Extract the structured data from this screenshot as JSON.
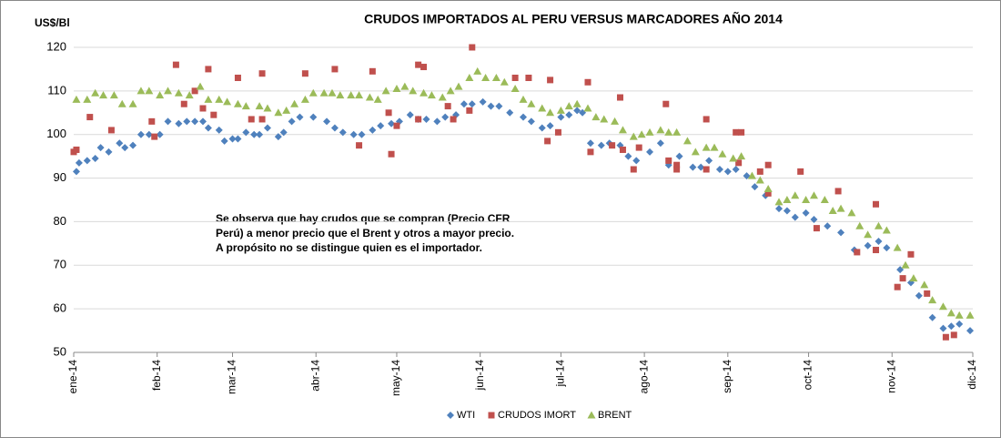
{
  "chart_data": {
    "type": "scatter",
    "title": "CRUDOS IMPORTADOS AL PERU VERSUS MARCADORES AÑO 2014",
    "y_label": "US$/Bl",
    "annotation": [
      "Se observa que hay crudos que se compran (Precio CFR",
      "Perú) a menor precio que el Brent y otros a mayor precio.",
      "A propósito  no se distingue quien es el importador."
    ],
    "xlim": [
      0,
      334
    ],
    "xticks": [
      {
        "value": 0,
        "label": "ene-14"
      },
      {
        "value": 31,
        "label": "feb-14"
      },
      {
        "value": 59,
        "label": "mar-14"
      },
      {
        "value": 90,
        "label": "abr-14"
      },
      {
        "value": 120,
        "label": "may-14"
      },
      {
        "value": 151,
        "label": "jun-14"
      },
      {
        "value": 181,
        "label": "jul-14"
      },
      {
        "value": 212,
        "label": "ago-14"
      },
      {
        "value": 243,
        "label": "sep-14"
      },
      {
        "value": 273,
        "label": "oct-14"
      },
      {
        "value": 304,
        "label": "nov-14"
      },
      {
        "value": 334,
        "label": "dic-14"
      }
    ],
    "ylim": [
      50,
      120
    ],
    "yticks": [
      50,
      60,
      70,
      80,
      90,
      100,
      110,
      120
    ],
    "grid": true,
    "legend": "bottom",
    "series": [
      {
        "name": "WTI",
        "color": "#4f81bd",
        "marker": "diamond",
        "x": [
          1,
          2,
          5,
          8,
          10,
          13,
          17,
          19,
          22,
          25,
          28,
          32,
          35,
          39,
          42,
          45,
          48,
          50,
          54,
          56,
          59,
          61,
          64,
          67,
          69,
          72,
          76,
          78,
          81,
          84,
          89,
          94,
          97,
          100,
          104,
          107,
          111,
          114,
          118,
          121,
          125,
          128,
          131,
          135,
          138,
          142,
          145,
          148,
          152,
          155,
          158,
          162,
          167,
          170,
          174,
          177,
          181,
          184,
          187,
          189,
          192,
          196,
          199,
          203,
          206,
          209,
          214,
          218,
          221,
          225,
          230,
          233,
          236,
          240,
          243,
          246,
          250,
          253,
          257,
          262,
          265,
          268,
          272,
          275,
          280,
          285,
          290,
          295,
          299,
          302,
          307,
          311,
          314,
          319,
          323,
          326,
          329,
          333
        ],
        "values": [
          91.5,
          93.5,
          94,
          94.5,
          97,
          96,
          98,
          97,
          97.5,
          100,
          100,
          100,
          103,
          102.5,
          103,
          103,
          103,
          101.5,
          101,
          98.5,
          99,
          99,
          100.5,
          100,
          100,
          101.5,
          99.5,
          100.5,
          103,
          104,
          104,
          103,
          101.5,
          100.5,
          100,
          100,
          101,
          102,
          102.5,
          103,
          104.5,
          103.5,
          103.5,
          103,
          104,
          104.5,
          107,
          107,
          107.5,
          106.5,
          106.5,
          105,
          104,
          103,
          101.5,
          102,
          104,
          104.5,
          105.5,
          105,
          98,
          97.5,
          98,
          97.5,
          95,
          94,
          96,
          98,
          93,
          95,
          92.5,
          92.5,
          94,
          92,
          91.5,
          92,
          90.5,
          88,
          86,
          83,
          82.5,
          81,
          82,
          80.5,
          79,
          77.5,
          73.5,
          74.5,
          75.5,
          74,
          69,
          66,
          63,
          58,
          55.5,
          56,
          56.5,
          55
        ]
      },
      {
        "name": "CRUDOS IMORT",
        "color": "#c0504d",
        "marker": "square",
        "x": [
          0,
          1,
          6,
          14,
          29,
          30,
          38,
          41,
          45,
          48,
          50,
          52,
          61,
          66,
          70,
          70,
          86,
          97,
          106,
          111,
          117,
          118,
          120,
          128,
          128,
          130,
          139,
          141,
          147,
          148,
          164,
          169,
          176,
          177,
          180,
          191,
          192,
          200,
          203,
          204,
          208,
          210,
          220,
          221,
          224,
          224,
          235,
          235,
          246,
          247,
          248,
          255,
          258,
          258,
          270,
          276,
          284,
          291,
          298,
          298,
          306,
          308,
          311,
          317,
          324,
          327
        ],
        "values": [
          96,
          96.5,
          104,
          101,
          103,
          99.5,
          116,
          107,
          110,
          106,
          115,
          104.5,
          113,
          103.5,
          114,
          103.5,
          114,
          115,
          97.5,
          114.5,
          105,
          95.5,
          102,
          103.5,
          116,
          115.5,
          106.5,
          103.5,
          105.5,
          120,
          113,
          113,
          98.5,
          112.5,
          100.5,
          112,
          96,
          97.5,
          108.5,
          96.5,
          92,
          97,
          107,
          94,
          93,
          92,
          92,
          103.5,
          100.5,
          93.5,
          100.5,
          91.5,
          93,
          86.5,
          91.5,
          78.5,
          87,
          73,
          73.5,
          84,
          65,
          67,
          72.5,
          63.5,
          53.5,
          54
        ]
      },
      {
        "name": "BRENT",
        "color": "#9bbb59",
        "marker": "triangle",
        "x": [
          1,
          5,
          8,
          11,
          15,
          18,
          22,
          25,
          28,
          32,
          35,
          39,
          43,
          47,
          50,
          54,
          57,
          61,
          64,
          69,
          72,
          76,
          79,
          82,
          86,
          89,
          93,
          96,
          99,
          103,
          106,
          110,
          113,
          116,
          120,
          123,
          126,
          130,
          133,
          137,
          140,
          143,
          147,
          150,
          153,
          157,
          160,
          164,
          167,
          170,
          174,
          177,
          181,
          184,
          187,
          191,
          194,
          197,
          201,
          204,
          208,
          211,
          214,
          218,
          221,
          224,
          228,
          231,
          235,
          238,
          241,
          245,
          248,
          252,
          255,
          258,
          262,
          265,
          268,
          272,
          275,
          279,
          282,
          285,
          289,
          292,
          295,
          299,
          302,
          306,
          309,
          312,
          316,
          319,
          323,
          326,
          329,
          333
        ],
        "values": [
          108,
          108,
          109.5,
          109,
          109,
          107,
          107,
          110,
          110,
          109,
          110,
          109.5,
          109,
          111,
          108,
          108,
          107.5,
          107,
          106.5,
          106.5,
          106,
          105,
          105.5,
          107,
          108,
          109.5,
          109.5,
          109.5,
          109,
          109,
          109,
          108.5,
          108,
          110,
          110.5,
          111,
          110,
          109.5,
          109,
          108.5,
          110,
          111,
          113,
          114.5,
          113,
          113,
          112,
          110.5,
          108,
          107,
          106,
          105,
          105.5,
          106.5,
          107,
          106,
          104,
          103.5,
          103,
          101,
          99.5,
          100,
          100.5,
          101,
          100.5,
          100.5,
          98.5,
          96,
          97,
          97,
          95.5,
          94.5,
          95,
          90.5,
          89.5,
          87.5,
          84.5,
          85,
          86,
          85,
          86,
          85,
          82.5,
          83,
          82,
          79,
          77,
          79,
          78,
          74,
          70,
          67,
          65.5,
          62,
          60.5,
          59,
          58.5,
          58.5
        ]
      }
    ]
  }
}
